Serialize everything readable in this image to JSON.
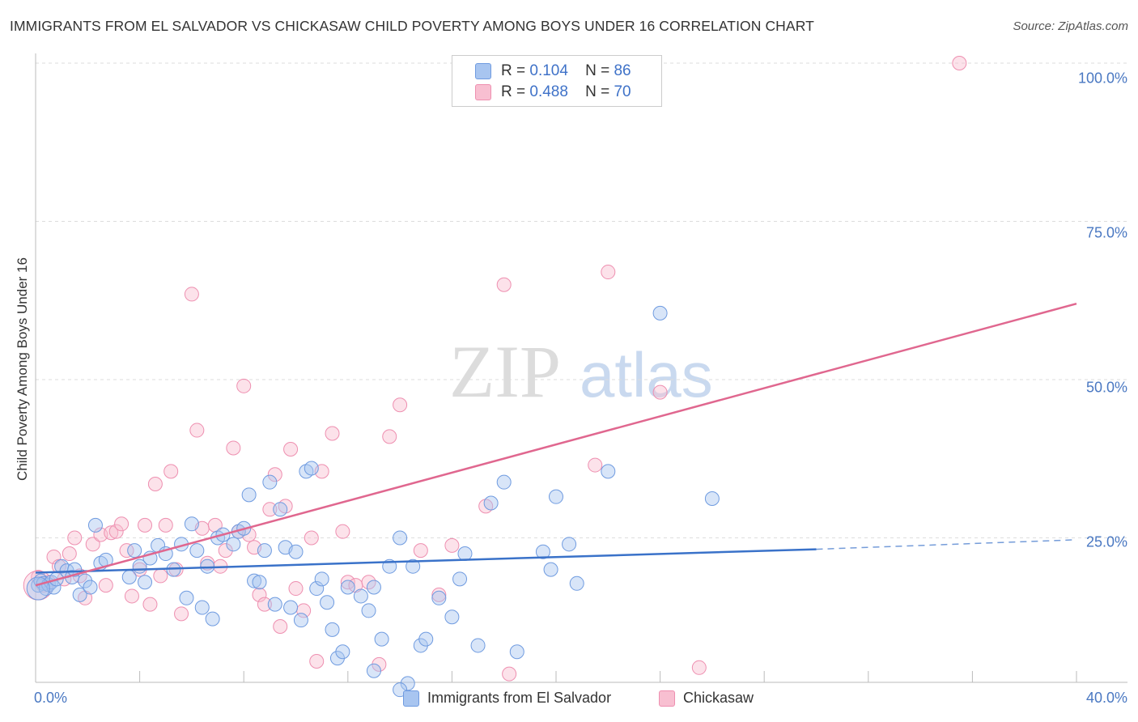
{
  "title": "IMMIGRANTS FROM EL SALVADOR VS CHICKASAW CHILD POVERTY AMONG BOYS UNDER 16 CORRELATION CHART",
  "source": "Source: ZipAtlas.com",
  "watermark": {
    "zip": "ZIP",
    "atlas": "atlas"
  },
  "legend": {
    "rows": [
      {
        "r_label": "R =",
        "r_value": "0.104",
        "n_label": "N =",
        "n_value": "86",
        "color": "#a8c5f0",
        "border": "#6f9be0"
      },
      {
        "r_label": "R =",
        "r_value": "0.488",
        "n_label": "N =",
        "n_value": "70",
        "color": "#f8bfd1",
        "border": "#ee8fb0"
      }
    ]
  },
  "bottom_legend": {
    "series1": "Immigrants from El Salvador",
    "series2": "Chickasaw"
  },
  "chart_data": {
    "type": "scatter",
    "title": "IMMIGRANTS FROM EL SALVADOR VS CHICKASAW CHILD POVERTY AMONG BOYS UNDER 16 CORRELATION CHART",
    "xlabel": "",
    "ylabel": "Child Poverty Among Boys Under 16",
    "xlim": [
      0,
      40
    ],
    "ylim": [
      0,
      100
    ],
    "x_tick_labels": [
      "0.0%",
      "40.0%"
    ],
    "y_ticks": [
      25,
      50,
      75,
      100
    ],
    "y_tick_labels": [
      "25.0%",
      "50.0%",
      "75.0%",
      "100.0%"
    ],
    "grid": true,
    "legend_position": "top-center",
    "series": [
      {
        "name": "Immigrants from El Salvador",
        "color": "#a8c5f0",
        "edge": "#6f9be0",
        "R": 0.104,
        "N": 86,
        "trend": {
          "x0": 0,
          "y0": 19.5,
          "x1": 30,
          "y1": 23.2,
          "dash_to_x": 40,
          "dash_to_y": 24.7
        },
        "points": [
          [
            0.1,
            17.5
          ],
          [
            0.2,
            18.2
          ],
          [
            0.3,
            17.8
          ],
          [
            0.4,
            17.0
          ],
          [
            0.5,
            17.6
          ],
          [
            0.6,
            18.0
          ],
          [
            0.7,
            17.2
          ],
          [
            0.8,
            18.5
          ],
          [
            1.0,
            20.5
          ],
          [
            1.2,
            19.8
          ],
          [
            1.4,
            18.8
          ],
          [
            1.5,
            20.0
          ],
          [
            1.7,
            16.0
          ],
          [
            1.9,
            18.2
          ],
          [
            2.1,
            17.2
          ],
          [
            2.3,
            27.0
          ],
          [
            2.5,
            21.0
          ],
          [
            2.7,
            21.5
          ],
          [
            3.6,
            18.8
          ],
          [
            3.8,
            23.0
          ],
          [
            4.0,
            20.5
          ],
          [
            4.2,
            18.0
          ],
          [
            4.4,
            21.8
          ],
          [
            4.7,
            23.8
          ],
          [
            5.0,
            22.5
          ],
          [
            5.3,
            20.0
          ],
          [
            5.6,
            24.0
          ],
          [
            5.8,
            15.5
          ],
          [
            6.0,
            27.2
          ],
          [
            6.2,
            23.0
          ],
          [
            6.4,
            14.0
          ],
          [
            6.6,
            20.5
          ],
          [
            6.8,
            12.2
          ],
          [
            7.0,
            25.0
          ],
          [
            7.2,
            25.5
          ],
          [
            7.6,
            24.0
          ],
          [
            7.8,
            26.0
          ],
          [
            8.0,
            26.5
          ],
          [
            8.2,
            31.8
          ],
          [
            8.4,
            18.2
          ],
          [
            8.6,
            18.0
          ],
          [
            8.8,
            23.0
          ],
          [
            9.0,
            33.8
          ],
          [
            9.2,
            14.5
          ],
          [
            9.4,
            29.5
          ],
          [
            9.6,
            23.5
          ],
          [
            9.8,
            14.0
          ],
          [
            10.0,
            22.8
          ],
          [
            10.2,
            12.0
          ],
          [
            10.4,
            35.5
          ],
          [
            10.6,
            36.0
          ],
          [
            10.8,
            17.0
          ],
          [
            11.0,
            18.5
          ],
          [
            11.2,
            14.8
          ],
          [
            11.4,
            10.5
          ],
          [
            11.6,
            6.0
          ],
          [
            11.8,
            7.0
          ],
          [
            12.0,
            17.2
          ],
          [
            12.5,
            15.8
          ],
          [
            12.8,
            13.5
          ],
          [
            13.0,
            17.2
          ],
          [
            13.3,
            9.0
          ],
          [
            13.6,
            20.5
          ],
          [
            14.0,
            25.0
          ],
          [
            14.3,
            2.0
          ],
          [
            14.5,
            20.5
          ],
          [
            14.8,
            8.0
          ],
          [
            15.0,
            9.0
          ],
          [
            15.5,
            15.5
          ],
          [
            16.0,
            12.5
          ],
          [
            16.3,
            18.5
          ],
          [
            16.5,
            22.5
          ],
          [
            17.0,
            8.0
          ],
          [
            17.5,
            30.5
          ],
          [
            18.0,
            33.8
          ],
          [
            18.5,
            7.0
          ],
          [
            19.5,
            22.8
          ],
          [
            19.8,
            20.0
          ],
          [
            20.0,
            31.5
          ],
          [
            20.5,
            24.0
          ],
          [
            20.8,
            17.8
          ],
          [
            22.0,
            35.5
          ],
          [
            24.0,
            60.5
          ],
          [
            26.0,
            31.2
          ],
          [
            13.0,
            4.0
          ],
          [
            14.0,
            1.0
          ]
        ]
      },
      {
        "name": "Chickasaw",
        "color": "#f8bfd1",
        "edge": "#ee8fb0",
        "R": 0.488,
        "N": 70,
        "trend": {
          "x0": 0,
          "y0": 17.5,
          "x1": 40,
          "y1": 62.0
        },
        "points": [
          [
            0.1,
            18.8
          ],
          [
            0.3,
            17.5
          ],
          [
            0.5,
            18.0
          ],
          [
            0.7,
            22.0
          ],
          [
            0.9,
            20.5
          ],
          [
            1.1,
            18.5
          ],
          [
            1.3,
            22.5
          ],
          [
            1.5,
            25.0
          ],
          [
            1.7,
            19.0
          ],
          [
            1.9,
            15.5
          ],
          [
            2.2,
            24.0
          ],
          [
            2.5,
            25.5
          ],
          [
            2.7,
            17.5
          ],
          [
            2.9,
            25.8
          ],
          [
            3.1,
            26.0
          ],
          [
            3.3,
            27.2
          ],
          [
            3.5,
            23.0
          ],
          [
            3.7,
            15.8
          ],
          [
            4.0,
            20.0
          ],
          [
            4.2,
            27.0
          ],
          [
            4.4,
            14.5
          ],
          [
            4.6,
            33.5
          ],
          [
            4.8,
            19.0
          ],
          [
            5.0,
            27.0
          ],
          [
            5.2,
            35.5
          ],
          [
            5.4,
            20.0
          ],
          [
            5.6,
            13.0
          ],
          [
            6.0,
            63.5
          ],
          [
            6.2,
            42.0
          ],
          [
            6.4,
            26.5
          ],
          [
            6.6,
            21.0
          ],
          [
            6.9,
            27.0
          ],
          [
            7.1,
            20.5
          ],
          [
            7.3,
            23.0
          ],
          [
            7.6,
            39.2
          ],
          [
            7.8,
            26.0
          ],
          [
            8.0,
            49.0
          ],
          [
            8.2,
            25.5
          ],
          [
            8.4,
            23.5
          ],
          [
            8.6,
            16.0
          ],
          [
            8.8,
            14.5
          ],
          [
            9.0,
            29.5
          ],
          [
            9.2,
            35.0
          ],
          [
            9.4,
            11.0
          ],
          [
            9.6,
            30.0
          ],
          [
            9.8,
            39.0
          ],
          [
            10.0,
            17.0
          ],
          [
            10.3,
            13.5
          ],
          [
            10.6,
            25.0
          ],
          [
            11.0,
            35.5
          ],
          [
            11.4,
            41.5
          ],
          [
            11.8,
            26.0
          ],
          [
            12.0,
            18.0
          ],
          [
            12.3,
            17.5
          ],
          [
            12.8,
            18.0
          ],
          [
            13.2,
            5.0
          ],
          [
            13.6,
            41.0
          ],
          [
            14.0,
            46.0
          ],
          [
            14.8,
            23.0
          ],
          [
            15.5,
            16.0
          ],
          [
            16.0,
            23.8
          ],
          [
            17.3,
            30.0
          ],
          [
            18.0,
            65.0
          ],
          [
            18.2,
            3.5
          ],
          [
            21.5,
            36.5
          ],
          [
            22.0,
            67.0
          ],
          [
            24.0,
            48.0
          ],
          [
            25.5,
            4.5
          ],
          [
            35.5,
            100.0
          ],
          [
            10.8,
            5.5
          ]
        ]
      }
    ]
  }
}
